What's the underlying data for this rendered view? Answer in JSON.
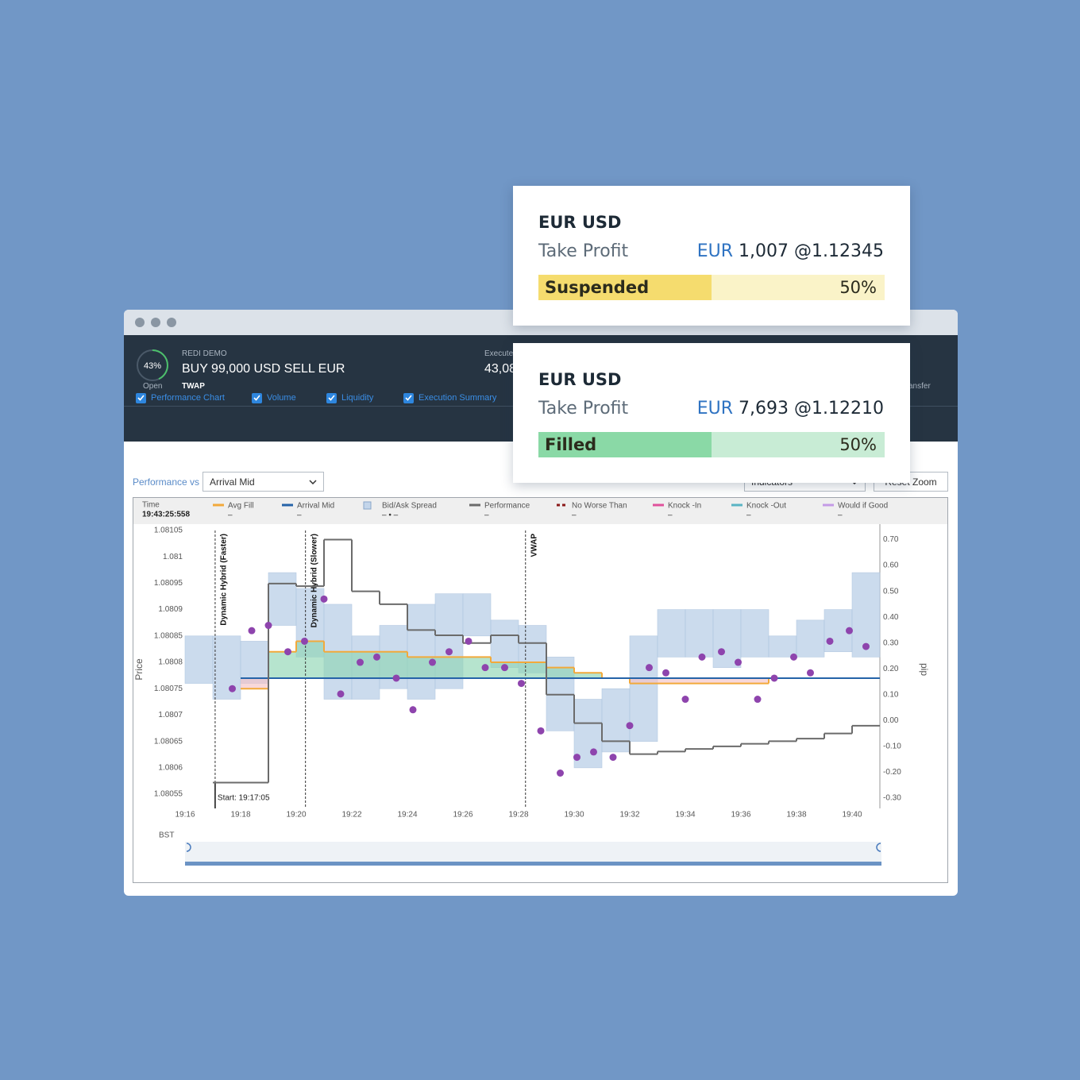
{
  "header": {
    "progress": {
      "value": 43,
      "label": "43%"
    },
    "status": "Open",
    "account": "REDI DEMO",
    "order": "BUY 99,000 USD SELL EUR",
    "strategy": "TWAP",
    "executed_label": "Execute",
    "executed_value": "43,08",
    "transfer_label": "ansfer"
  },
  "tabs": [
    "Performance Chart",
    "Volume",
    "Liquidity",
    "Execution Summary"
  ],
  "controls": {
    "compare_label": "Performance vs",
    "compare_value": "Arrival Mid",
    "indicators": "Indicators",
    "reset": "Reset Zoom"
  },
  "cards": [
    {
      "pair": "EUR USD",
      "label": "Take Profit",
      "currency": "EUR",
      "amount": "1,007 @1.12345",
      "status": "Suspended",
      "progress": {
        "value": 50,
        "label": "50%"
      }
    },
    {
      "pair": "EUR USD",
      "label": "Take Profit",
      "currency": "EUR",
      "amount": "7,693 @1.12210",
      "status": "Filled",
      "progress": {
        "value": 50,
        "label": "50%"
      }
    }
  ],
  "chart_data": {
    "type": "line",
    "legend_time_label": "Time",
    "legend_time": "19:43:25:558",
    "y_label": "Price",
    "y2_label": "pip",
    "x_label": "BST",
    "x": [
      "19:16",
      "19:17",
      "19:18",
      "19:19",
      "19:20",
      "19:21",
      "19:22",
      "19:23",
      "19:24",
      "19:25",
      "19:26",
      "19:27",
      "19:28",
      "19:29",
      "19:30",
      "19:31",
      "19:32",
      "19:33",
      "19:34",
      "19:35",
      "19:36",
      "19:37",
      "19:38",
      "19:39",
      "19:40"
    ],
    "xlim": [
      "19:16",
      "19:41"
    ],
    "xticks": [
      "19:16",
      "19:18",
      "19:20",
      "19:22",
      "19:24",
      "19:26",
      "19:28",
      "19:30",
      "19:32",
      "19:34",
      "19:36",
      "19:38",
      "19:40"
    ],
    "ylim": [
      1.080523,
      1.081062
    ],
    "yticks": [
      1.08105,
      1.081,
      1.08095,
      1.0809,
      1.08085,
      1.0808,
      1.08075,
      1.0807,
      1.08065,
      1.0806,
      1.08055
    ],
    "y2lim": [
      -0.34,
      0.76
    ],
    "y2ticks": [
      {
        "value": 0.7,
        "label": "0.70"
      },
      {
        "value": 0.6,
        "label": "0.60"
      },
      {
        "value": 0.5,
        "label": "0.50"
      },
      {
        "value": 0.4,
        "label": "0.40"
      },
      {
        "value": 0.3,
        "label": "0.30"
      },
      {
        "value": 0.2,
        "label": "0.20"
      },
      {
        "value": 0.1,
        "label": "0.10"
      },
      {
        "value": 0,
        "label": "0.00"
      },
      {
        "value": -0.1,
        "label": "-0.10"
      },
      {
        "value": -0.2,
        "label": "-0.20"
      },
      {
        "value": -0.3,
        "label": "-0.30"
      }
    ],
    "series": [
      {
        "name": "Avg Fill",
        "color": "#f2a93b",
        "type": "step",
        "current": "–",
        "values": [
          null,
          null,
          1.08075,
          1.08082,
          1.08084,
          1.08082,
          1.08082,
          1.08082,
          1.08081,
          1.08081,
          1.08081,
          1.0808,
          1.0808,
          1.08079,
          1.08078,
          1.08077,
          1.08076,
          1.08076,
          1.08076,
          1.08076,
          1.08076,
          1.08077,
          1.08077,
          1.08077,
          1.08077
        ]
      },
      {
        "name": "Arrival Mid",
        "color": "#2563a8",
        "type": "step",
        "current": "–",
        "values": [
          null,
          null,
          1.08077,
          1.08077,
          1.08077,
          1.08077,
          1.08077,
          1.08077,
          1.08077,
          1.08077,
          1.08077,
          1.08077,
          1.08077,
          1.08077,
          1.08077,
          1.08077,
          1.08077,
          1.08077,
          1.08077,
          1.08077,
          1.08077,
          1.08077,
          1.08077,
          1.08077,
          1.08077
        ]
      },
      {
        "name": "Bid/Ask Spread",
        "color": "#c3d5ea",
        "type": "band",
        "current": "– • –",
        "high": [
          1.08085,
          1.08085,
          1.08084,
          1.08097,
          1.08094,
          1.08091,
          1.08085,
          1.08087,
          1.08091,
          1.08093,
          1.08093,
          1.08088,
          1.08087,
          1.08081,
          1.08073,
          1.08075,
          1.08085,
          1.0809,
          1.0809,
          1.0809,
          1.0809,
          1.08085,
          1.08088,
          1.0809,
          1.08097
        ],
        "low": [
          1.08076,
          1.08073,
          1.08076,
          1.08087,
          1.08081,
          1.08073,
          1.08073,
          1.08075,
          1.08073,
          1.08075,
          1.08085,
          1.08079,
          1.08078,
          1.08067,
          1.0806,
          1.08063,
          1.08065,
          1.08081,
          1.08081,
          1.08079,
          1.08081,
          1.08081,
          1.08081,
          1.08082,
          1.08081
        ]
      },
      {
        "name": "Performance",
        "color": "#6b6b6b",
        "type": "step",
        "axis": "y2",
        "current": "–",
        "values": [
          null,
          -0.24,
          -0.24,
          0.53,
          0.52,
          0.7,
          0.5,
          0.45,
          0.35,
          0.33,
          0.3,
          0.33,
          0.3,
          0.1,
          -0.01,
          -0.08,
          -0.13,
          -0.12,
          -0.11,
          -0.1,
          -0.09,
          -0.08,
          -0.07,
          -0.05,
          -0.02
        ]
      },
      {
        "name": "No Worse Than",
        "color": "#8b1a1a",
        "current": "–"
      },
      {
        "name": "Knock -In",
        "color": "#e0529c",
        "current": "–"
      },
      {
        "name": "Knock -Out",
        "color": "#5ab4c4",
        "current": "–"
      },
      {
        "name": "Would if Good",
        "color": "#c49be6",
        "current": "–"
      }
    ],
    "fills": {
      "type": "scatter",
      "color": "#8e44ad",
      "x": [
        "19:17:42",
        "19:18:24",
        "19:19:00",
        "19:19:42",
        "19:20:18",
        "19:21:00",
        "19:21:36",
        "19:22:18",
        "19:22:54",
        "19:23:36",
        "19:24:12",
        "19:24:54",
        "19:25:30",
        "19:26:12",
        "19:26:48",
        "19:27:30",
        "19:28:06",
        "19:28:48",
        "19:29:30",
        "19:30:06",
        "19:30:42",
        "19:31:24",
        "19:32:00",
        "19:32:42",
        "19:33:18",
        "19:34:00",
        "19:34:36",
        "19:35:18",
        "19:35:54",
        "19:36:36",
        "19:37:12",
        "19:37:54",
        "19:38:30",
        "19:39:12",
        "19:39:54",
        "19:40:30"
      ],
      "values": [
        1.08075,
        1.08086,
        1.08087,
        1.08082,
        1.08084,
        1.08092,
        1.08074,
        1.0808,
        1.08081,
        1.08077,
        1.08071,
        1.0808,
        1.08082,
        1.08084,
        1.08079,
        1.08079,
        1.08076,
        1.08067,
        1.08059,
        1.08062,
        1.08063,
        1.08062,
        1.08068,
        1.08079,
        1.08078,
        1.08073,
        1.08081,
        1.08082,
        1.0808,
        1.08073,
        1.08077,
        1.08081,
        1.08078,
        1.08084,
        1.08086,
        1.08083
      ]
    },
    "annotations": [
      {
        "x": "19:17:05",
        "label": "Dynamic Hybrid (Faster)"
      },
      {
        "x": "19:20:20",
        "label": "Dynamic Hybrid (Slower)"
      },
      {
        "x": "19:28:15",
        "label": "VWAP"
      }
    ],
    "start_label": "Start: 19:17:05"
  }
}
